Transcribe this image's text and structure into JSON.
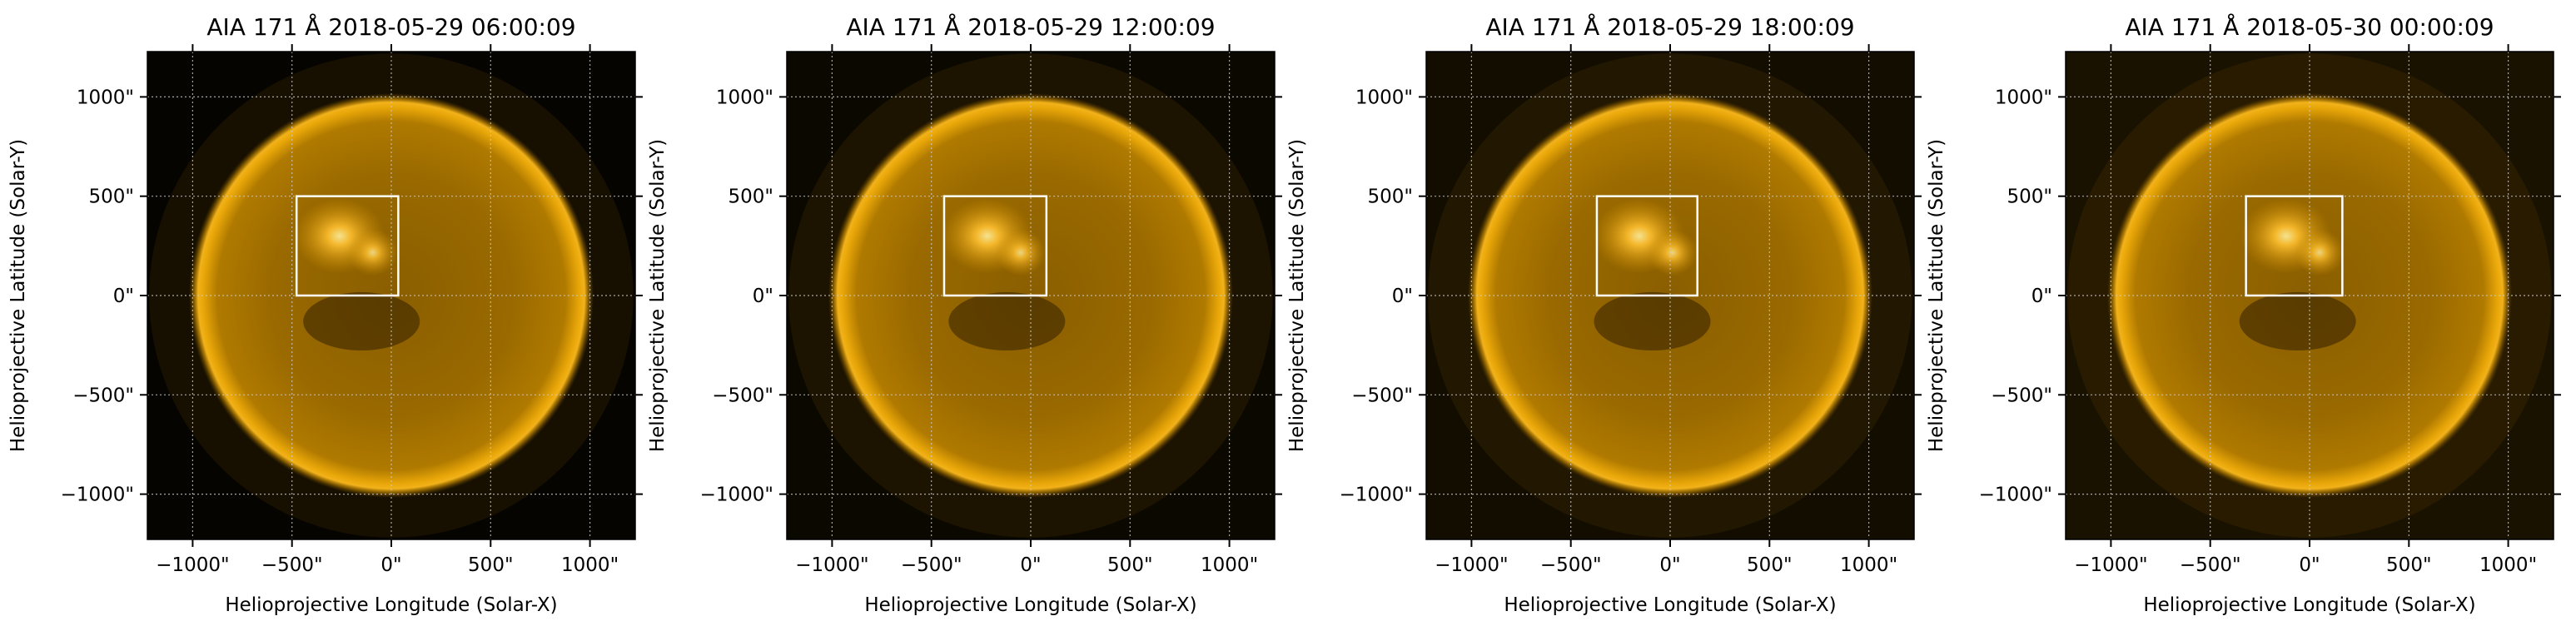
{
  "chart_data": {
    "type": "heatmap",
    "description_type": "solar image map grid",
    "xlabel": "Helioprojective Longitude (Solar-X)",
    "ylabel": "Helioprojective Latitude (Solar-Y)",
    "xlim": [
      -1228,
      1228
    ],
    "ylim": [
      -1228,
      1228
    ],
    "xticks": [
      -1000,
      -500,
      0,
      500,
      1000
    ],
    "yticks": [
      -1000,
      -500,
      0,
      500,
      1000
    ],
    "xtick_labels": [
      "−1000\"",
      "−500\"",
      "0\"",
      "500\"",
      "1000\""
    ],
    "ytick_labels": [
      "−1000\"",
      "−500\"",
      "0\"",
      "500\"",
      "1000\""
    ],
    "grid": true,
    "solar_radius_arcsec": 975,
    "colormap": "sdoaia171",
    "colors": {
      "disk": "#c88a00",
      "limb": "#f0ad10",
      "box": "#ffffff"
    },
    "panels": [
      {
        "title": "AIA 171 Å 2018-05-29 06:00:09",
        "box": {
          "x": [
            -477,
            35
          ],
          "y": [
            0,
            500
          ]
        },
        "background": "#060400"
      },
      {
        "title": "AIA 171 Å 2018-05-29 12:00:09",
        "box": {
          "x": [
            -436,
            79
          ],
          "y": [
            0,
            500
          ]
        },
        "background": "#0b0800"
      },
      {
        "title": "AIA 171 Å 2018-05-29 18:00:09",
        "box": {
          "x": [
            -369,
            137
          ],
          "y": [
            0,
            500
          ]
        },
        "background": "#130d00"
      },
      {
        "title": "AIA 171 Å 2018-05-30 00:00:09",
        "box": {
          "x": [
            -320,
            165
          ],
          "y": [
            0,
            500
          ]
        },
        "background": "#1a1200"
      }
    ]
  }
}
